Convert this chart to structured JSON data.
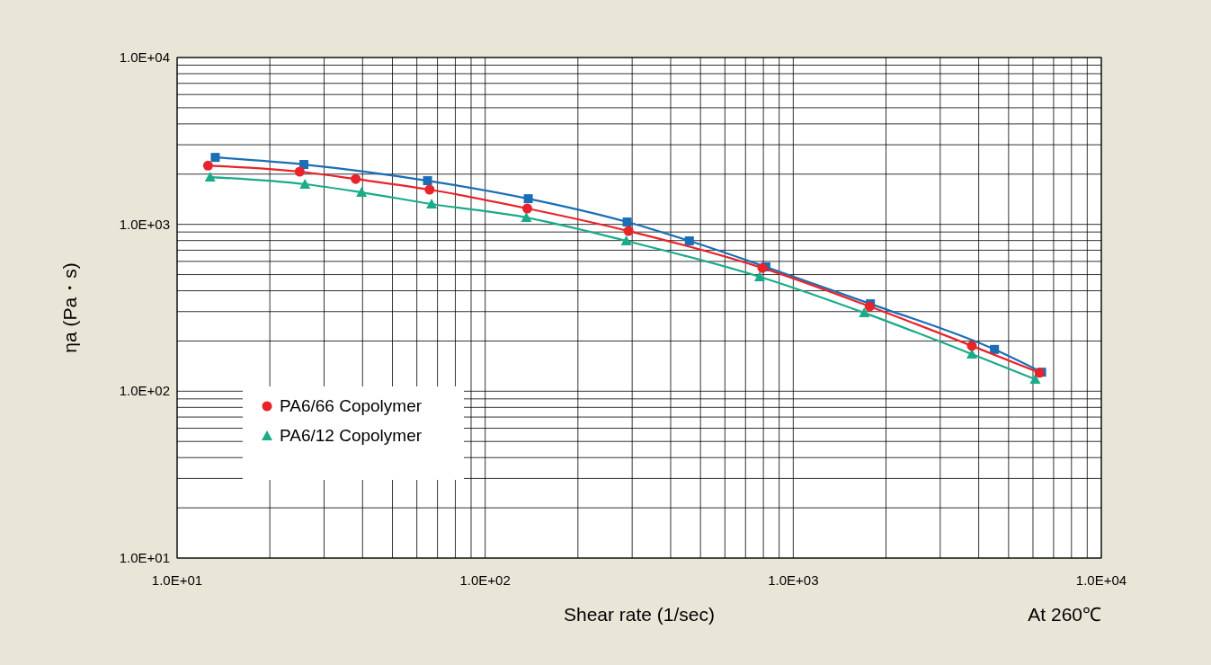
{
  "chart_data": {
    "type": "line",
    "xlabel": "Shear rate (1/sec)",
    "ylabel": "ηa (Pa・s)",
    "annotations": [
      "At 260℃"
    ],
    "log": "xy",
    "grid": true,
    "legend": "bottom left",
    "xlim": [
      10,
      10000
    ],
    "ylim": [
      10,
      10000
    ],
    "xticks": [
      {
        "value": 10,
        "label": "1.0E+01"
      },
      {
        "value": 20,
        "label": null
      },
      {
        "value": 30,
        "label": null
      },
      {
        "value": 40,
        "label": null
      },
      {
        "value": 50,
        "label": null
      },
      {
        "value": 60,
        "label": null
      },
      {
        "value": 70,
        "label": null
      },
      {
        "value": 80,
        "label": null
      },
      {
        "value": 90,
        "label": null
      },
      {
        "value": 100,
        "label": "1.0E+02"
      },
      {
        "value": 200,
        "label": null
      },
      {
        "value": 300,
        "label": null
      },
      {
        "value": 400,
        "label": null
      },
      {
        "value": 500,
        "label": null
      },
      {
        "value": 600,
        "label": null
      },
      {
        "value": 700,
        "label": null
      },
      {
        "value": 800,
        "label": null
      },
      {
        "value": 900,
        "label": null
      },
      {
        "value": 1000,
        "label": "1.0E+03"
      },
      {
        "value": 2000,
        "label": null
      },
      {
        "value": 3000,
        "label": null
      },
      {
        "value": 4000,
        "label": null
      },
      {
        "value": 5000,
        "label": null
      },
      {
        "value": 6000,
        "label": null
      },
      {
        "value": 7000,
        "label": null
      },
      {
        "value": 8000,
        "label": null
      },
      {
        "value": 9000,
        "label": null
      },
      {
        "value": 10000,
        "label": "1.0E+04"
      }
    ],
    "yticks": [
      {
        "value": 10,
        "label": "1.0E+01"
      },
      {
        "value": 20,
        "label": null
      },
      {
        "value": 30,
        "label": null
      },
      {
        "value": 40,
        "label": null
      },
      {
        "value": 50,
        "label": null
      },
      {
        "value": 60,
        "label": null
      },
      {
        "value": 70,
        "label": null
      },
      {
        "value": 80,
        "label": null
      },
      {
        "value": 90,
        "label": null
      },
      {
        "value": 100,
        "label": "1.0E+02"
      },
      {
        "value": 200,
        "label": null
      },
      {
        "value": 300,
        "label": null
      },
      {
        "value": 400,
        "label": null
      },
      {
        "value": 500,
        "label": null
      },
      {
        "value": 600,
        "label": null
      },
      {
        "value": 700,
        "label": null
      },
      {
        "value": 800,
        "label": null
      },
      {
        "value": 900,
        "label": null
      },
      {
        "value": 1000,
        "label": "1.0E+03"
      },
      {
        "value": 2000,
        "label": null
      },
      {
        "value": 3000,
        "label": null
      },
      {
        "value": 4000,
        "label": null
      },
      {
        "value": 5000,
        "label": null
      },
      {
        "value": 6000,
        "label": null
      },
      {
        "value": 7000,
        "label": null
      },
      {
        "value": 8000,
        "label": null
      },
      {
        "value": 9000,
        "label": null
      },
      {
        "value": 10000,
        "label": "1.0E+04"
      }
    ],
    "series": [
      {
        "name": "PA6/66 Copolymer",
        "color": "#e8232a",
        "marker": "circle",
        "x": [
          12.6,
          25,
          38,
          66,
          137,
          292,
          794,
          1770,
          3800,
          6300
        ],
        "values": [
          2250,
          2070,
          1870,
          1615,
          1245,
          912,
          548,
          322,
          187,
          129
        ]
      },
      {
        "name": "PA6/12 Copolymer",
        "color": "#1aab8a",
        "marker": "triangle",
        "x": [
          12.8,
          26,
          39.7,
          67,
          136,
          287,
          778,
          1700,
          3800,
          6100
        ],
        "values": [
          1920,
          1740,
          1555,
          1324,
          1099,
          796,
          485,
          295,
          167,
          118
        ]
      },
      {
        "color": "#1a6eb5",
        "marker": "square",
        "x": [
          13.3,
          25.8,
          65,
          138,
          289,
          460,
          815,
          1780,
          4500,
          6400
        ],
        "values": [
          2520,
          2285,
          1827,
          1425,
          1033,
          796,
          556,
          334,
          178,
          130
        ]
      }
    ]
  }
}
